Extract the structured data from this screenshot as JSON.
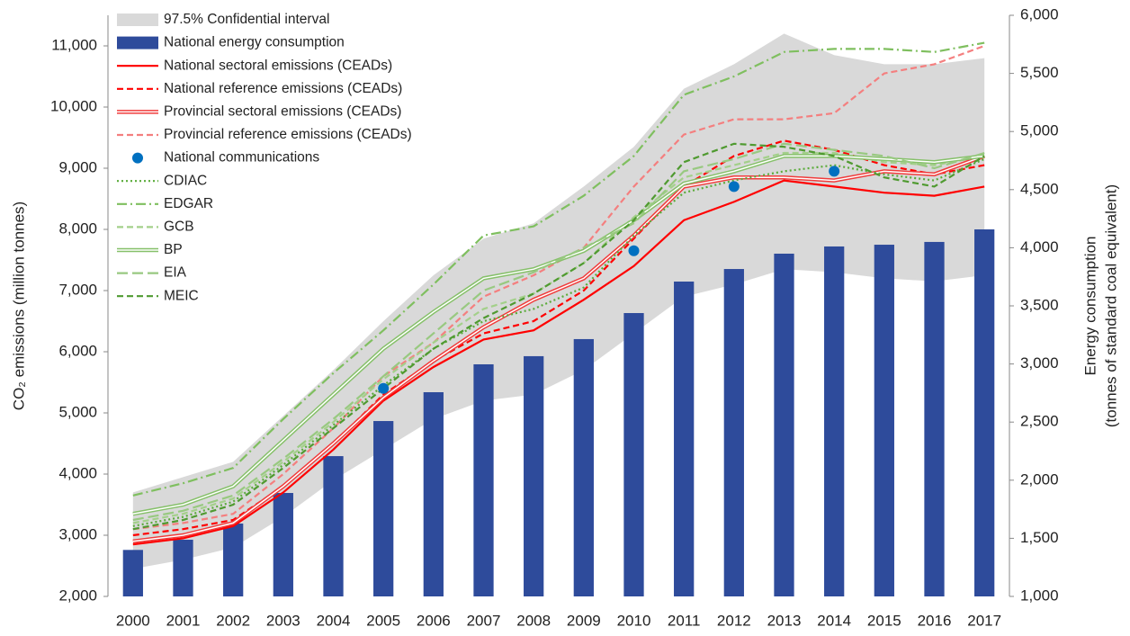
{
  "chart_data": {
    "type": "combo",
    "categories": [
      "2000",
      "2001",
      "2002",
      "2003",
      "2004",
      "2005",
      "2006",
      "2007",
      "2008",
      "2009",
      "2010",
      "2011",
      "2012",
      "2013",
      "2014",
      "2015",
      "2016",
      "2017"
    ],
    "ylabel": "CO₂ emissions (million tonnes)",
    "y2label": [
      "Energy consumption",
      "(tonnes of standard coal equivalent)"
    ],
    "ylim": [
      2000,
      11500
    ],
    "yticks": [
      {
        "value": 2000,
        "label": "2,000"
      },
      {
        "value": 3000,
        "label": "3,000"
      },
      {
        "value": 4000,
        "label": "4,000"
      },
      {
        "value": 5000,
        "label": "5,000"
      },
      {
        "value": 6000,
        "label": "6,000"
      },
      {
        "value": 7000,
        "label": "7,000"
      },
      {
        "value": 8000,
        "label": "8,000"
      },
      {
        "value": 9000,
        "label": "9,000"
      },
      {
        "value": 10000,
        "label": "10,000"
      },
      {
        "value": 11000,
        "label": "11,000"
      }
    ],
    "y2lim": [
      1000,
      6000
    ],
    "y2ticks": [
      {
        "value": 1000,
        "label": "1,000"
      },
      {
        "value": 1500,
        "label": "1,500"
      },
      {
        "value": 2000,
        "label": "2,000"
      },
      {
        "value": 2500,
        "label": "2,500"
      },
      {
        "value": 3000,
        "label": "3,000"
      },
      {
        "value": 3500,
        "label": "3,500"
      },
      {
        "value": 4000,
        "label": "4,000"
      },
      {
        "value": 4500,
        "label": "4,500"
      },
      {
        "value": 5000,
        "label": "5,000"
      },
      {
        "value": 5500,
        "label": "5,500"
      },
      {
        "value": 6000,
        "label": "6,000"
      }
    ],
    "legend": "upper left",
    "band": {
      "name": "97.5% Confidential interval",
      "color": "#d9d9d9",
      "upper": [
        3700,
        3950,
        4200,
        4950,
        5700,
        6500,
        7250,
        7850,
        8100,
        8700,
        9350,
        10300,
        10700,
        11200,
        10850,
        10700,
        10700,
        10800
      ],
      "lower": [
        2450,
        2600,
        2800,
        3300,
        3900,
        4400,
        4900,
        5200,
        5300,
        5700,
        6300,
        6900,
        7100,
        7350,
        7300,
        7200,
        7150,
        7250
      ]
    },
    "series": [
      {
        "name": "National energy consumption",
        "kind": "bar",
        "axis": "y2",
        "color": "#2e4b9b",
        "values": [
          1400,
          1488,
          1627,
          1890,
          2207,
          2509,
          2757,
          2997,
          3067,
          3214,
          3438,
          3709,
          3817,
          3949,
          4011,
          4026,
          4050,
          4158
        ]
      },
      {
        "name": "National sectoral emissions (CEADs)",
        "kind": "line",
        "style": "solid",
        "color": "#ff0000",
        "values": [
          2850,
          2950,
          3150,
          3700,
          4400,
          5200,
          5750,
          6200,
          6350,
          6850,
          7400,
          8150,
          8450,
          8800,
          8700,
          8600,
          8550,
          8700
        ]
      },
      {
        "name": "National reference emissions (CEADs)",
        "kind": "line",
        "style": "dashed",
        "color": "#ff0000",
        "values": [
          3000,
          3100,
          3250,
          3800,
          4500,
          5300,
          5850,
          6300,
          6500,
          7000,
          7850,
          8700,
          9200,
          9450,
          9300,
          9050,
          8900,
          9050
        ]
      },
      {
        "name": "Provincial sectoral emissions (CEADs)",
        "kind": "line",
        "style": "double",
        "color": "#f03c3c",
        "values": [
          2900,
          3000,
          3200,
          3800,
          4500,
          5250,
          5850,
          6400,
          6850,
          7200,
          7900,
          8700,
          8850,
          8850,
          8800,
          8950,
          8900,
          9200
        ]
      },
      {
        "name": "Provincial reference emissions (CEADs)",
        "kind": "line",
        "style": "dashed",
        "color": "#f47f7f",
        "values": [
          3100,
          3200,
          3350,
          4000,
          4750,
          5600,
          6150,
          6900,
          7250,
          7700,
          8700,
          9550,
          9800,
          9800,
          9900,
          10550,
          10700,
          11000
        ]
      },
      {
        "name": "National communications",
        "kind": "scatter",
        "color": "#0070c0",
        "values": [
          null,
          null,
          null,
          null,
          null,
          5400,
          null,
          null,
          null,
          null,
          7650,
          null,
          8700,
          null,
          8950,
          null,
          null,
          null
        ]
      },
      {
        "name": "CDIAC",
        "kind": "line",
        "style": "dotted",
        "color": "#5aab3a",
        "values": [
          3150,
          3300,
          3550,
          4150,
          4800,
          5450,
          6050,
          6500,
          6700,
          7050,
          7900,
          8600,
          8800,
          8950,
          9050,
          8900,
          8800,
          9150
        ]
      },
      {
        "name": "EDGAR",
        "kind": "line",
        "style": "dashdot",
        "color": "#7fbf5f",
        "values": [
          3650,
          3850,
          4100,
          4900,
          5650,
          6350,
          7100,
          7900,
          8050,
          8550,
          9200,
          10200,
          10500,
          10900,
          10950,
          10950,
          10900,
          11050
        ]
      },
      {
        "name": "GCB",
        "kind": "line",
        "style": "dashed",
        "color": "#a3d08a",
        "values": [
          3200,
          3350,
          3600,
          4200,
          4850,
          5550,
          6150,
          6700,
          6950,
          7450,
          8200,
          8850,
          9050,
          9250,
          9250,
          9100,
          9050,
          9200
        ]
      },
      {
        "name": "BP",
        "kind": "line",
        "style": "double",
        "color": "#86c06a",
        "values": [
          3350,
          3500,
          3800,
          4550,
          5300,
          6050,
          6650,
          7200,
          7350,
          7650,
          8150,
          8750,
          8950,
          9200,
          9200,
          9150,
          9100,
          9200
        ]
      },
      {
        "name": "EIA",
        "kind": "line",
        "style": "longdash",
        "color": "#98c980",
        "values": [
          3250,
          3400,
          3650,
          4250,
          4900,
          5600,
          6300,
          7000,
          7300,
          7700,
          8100,
          8950,
          9150,
          9400,
          9300,
          9200,
          9000,
          9250
        ]
      },
      {
        "name": "MEIC",
        "kind": "line",
        "style": "dashed",
        "color": "#4f9a30",
        "values": [
          3100,
          3250,
          3500,
          4100,
          4750,
          5400,
          6050,
          6550,
          6950,
          7450,
          8150,
          9100,
          9400,
          9350,
          9200,
          8850,
          8700,
          9200
        ]
      }
    ]
  }
}
